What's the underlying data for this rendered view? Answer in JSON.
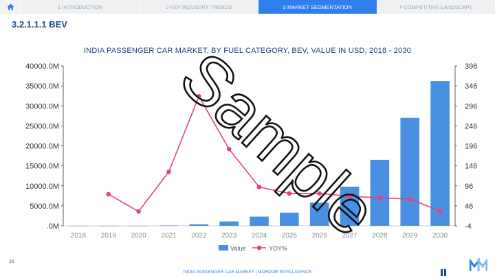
{
  "nav": {
    "tabs": [
      {
        "label": "1 INTRODUCTION",
        "active": false
      },
      {
        "label": "2 KEY INDUSTRY TRENDS",
        "active": false
      },
      {
        "label": "3 MARKET SEGMENTATION",
        "active": true
      },
      {
        "label": "4 COMPETITIVE LANDSCAPE",
        "active": false
      }
    ]
  },
  "section": {
    "title": "3.2.1.1.1 BEV"
  },
  "chart_data": {
    "type": "bar",
    "title": "INDIA PASSENGER CAR MARKET, BY FUEL CATEGORY, BEV, VALUE IN USD, 2018 - 2030",
    "categories": [
      "2018",
      "2019",
      "2020",
      "2021",
      "2022",
      "2023",
      "2024",
      "2025",
      "2026",
      "2027",
      "2028",
      "2029",
      "2030"
    ],
    "series": [
      {
        "name": "Value",
        "type": "bar",
        "axis": "left",
        "color": "#4a90e2",
        "values": [
          5,
          10,
          15,
          100,
          400,
          1100,
          2300,
          3300,
          5800,
          9800,
          16500,
          27000,
          36200
        ]
      },
      {
        "name": "YOY%",
        "type": "line",
        "axis": "right",
        "color": "#e8417a",
        "values": [
          null,
          75,
          32,
          131,
          320,
          188,
          93,
          77,
          77,
          70,
          66,
          63,
          33
        ]
      }
    ],
    "left_axis": {
      "min": 0,
      "max": 40000,
      "ticks": [
        ".0M",
        "5000.0M",
        "10000.0M",
        "15000.0M",
        "20000.0M",
        "25000.0M",
        "30000.0M",
        "35000.0M",
        "40000.0M"
      ]
    },
    "right_axis": {
      "min": -4,
      "max": 396,
      "ticks": [
        "-4",
        "46",
        "96",
        "146",
        "196",
        "246",
        "296",
        "346",
        "396"
      ]
    },
    "legend": {
      "position": "bottom",
      "items": [
        "Value",
        "YOY%"
      ]
    }
  },
  "watermark": {
    "text": "Sample"
  },
  "footer": {
    "text": "INDIA PASSENGER CAR MARKET | MORDOR INTELLIGENCE",
    "page": "28"
  }
}
